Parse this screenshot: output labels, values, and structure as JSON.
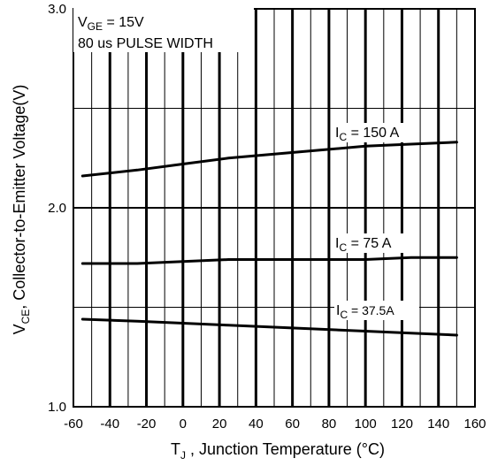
{
  "chart_data": {
    "type": "line",
    "xlabel_main": "T",
    "xlabel_sub": "J",
    "xlabel_rest": " , Junction Temperature (°C)",
    "ylabel_main": "V",
    "ylabel_sub": "CE",
    "ylabel_rest": ", Collector-to-Emitter Voltage(V)",
    "xlim": [
      -60,
      160
    ],
    "ylim": [
      1.0,
      3.0
    ],
    "x_ticks": [
      -60,
      -40,
      -20,
      0,
      20,
      40,
      60,
      80,
      100,
      120,
      140,
      160
    ],
    "x_tick_labels": [
      "-60",
      "-40",
      "-20",
      "0",
      "20",
      "40",
      "60",
      "80",
      "100",
      "120",
      "140",
      "160"
    ],
    "y_ticks": [
      1.0,
      2.0,
      3.0
    ],
    "y_tick_labels": [
      "1.0",
      "2.0",
      "3.0"
    ],
    "grid": true,
    "conditions": {
      "line1_main": "V",
      "line1_sub": "GE",
      "line1_rest": " = 15V",
      "line2": "80 us PULSE WIDTH"
    },
    "series": [
      {
        "label_main": "I",
        "label_sub": "C",
        "label_rest": " = 150 A",
        "x": [
          -55,
          -25,
          0,
          25,
          50,
          75,
          100,
          125,
          150
        ],
        "y": [
          2.16,
          2.19,
          2.22,
          2.25,
          2.27,
          2.29,
          2.31,
          2.32,
          2.33
        ]
      },
      {
        "label_main": "I",
        "label_sub": "C",
        "label_rest": " =  75 A",
        "x": [
          -55,
          -25,
          0,
          25,
          50,
          75,
          100,
          125,
          150
        ],
        "y": [
          1.72,
          1.72,
          1.73,
          1.74,
          1.74,
          1.74,
          1.74,
          1.75,
          1.75
        ]
      },
      {
        "label_main": "I",
        "label_sub": "C",
        "label_rest": " =  37.5A",
        "x": [
          -55,
          -25,
          0,
          25,
          50,
          75,
          100,
          125,
          150
        ],
        "y": [
          1.44,
          1.43,
          1.42,
          1.41,
          1.4,
          1.39,
          1.38,
          1.37,
          1.36
        ]
      }
    ]
  }
}
